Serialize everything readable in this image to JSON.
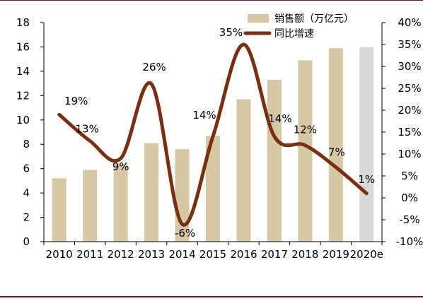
{
  "chart_data": {
    "type": "bar+line",
    "categories": [
      "2010",
      "2011",
      "2012",
      "2013",
      "2014",
      "2015",
      "2016",
      "2017",
      "2018",
      "2019",
      "2020e"
    ],
    "series": [
      {
        "name": "销售额（万亿元）",
        "type": "bar",
        "axis": "left",
        "values": [
          5.2,
          5.9,
          6.4,
          8.1,
          7.6,
          8.7,
          11.7,
          13.3,
          14.9,
          15.9,
          16.0
        ],
        "color": "#d6c7a7",
        "highlight": {
          "index": 10,
          "color": "#d9d9d9"
        }
      },
      {
        "name": "同比增速",
        "type": "line",
        "axis": "right",
        "values": [
          19,
          13,
          9,
          26,
          -6,
          14,
          35,
          14,
          12,
          7,
          1
        ],
        "color": "#7b2e10",
        "data_labels": [
          "19%",
          "13%",
          "9%",
          "26%",
          "-6%",
          "14%",
          "35%",
          "14%",
          "12%",
          "7%",
          "1%"
        ]
      }
    ],
    "yleft": {
      "min": 0,
      "max": 18,
      "step": 2,
      "ticks": [
        "0",
        "2",
        "4",
        "6",
        "8",
        "10",
        "12",
        "14",
        "16",
        "18"
      ]
    },
    "yright": {
      "min": -10,
      "max": 40,
      "step": 5,
      "ticks": [
        "-10%",
        "-5%",
        "0%",
        "5%",
        "10%",
        "15%",
        "20%",
        "25%",
        "30%",
        "35%",
        "40%"
      ]
    },
    "grid": false,
    "legend_position": "top-right"
  }
}
